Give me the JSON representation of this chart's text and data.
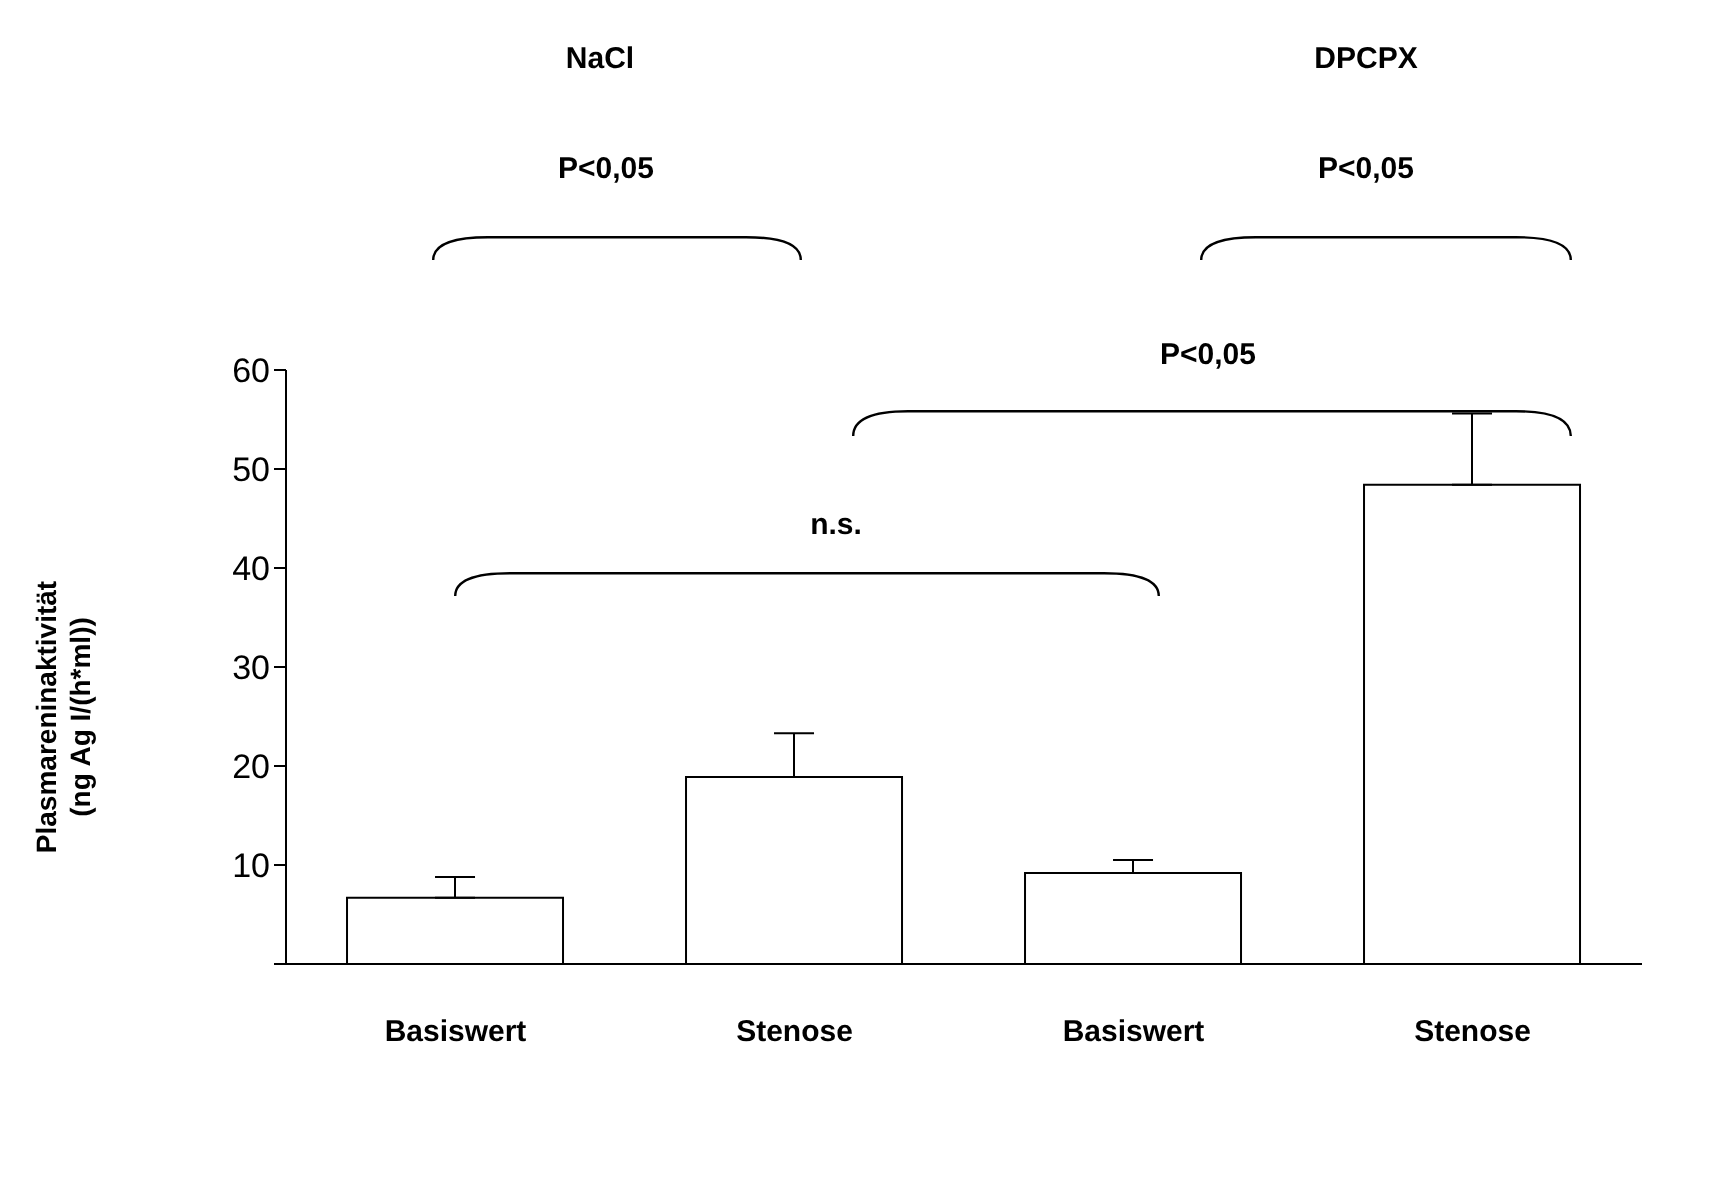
{
  "chart_data": {
    "type": "bar",
    "categories": [
      "Basiswert",
      "Stenose",
      "Basiswert",
      "Stenose"
    ],
    "values": [
      6.7,
      18.9,
      9.2,
      48.4
    ],
    "errors": [
      [
        6.7,
        8.8
      ],
      [
        18.9,
        23.3
      ],
      [
        9.2,
        10.5
      ],
      [
        48.4,
        55.6
      ]
    ],
    "colors": [
      "#ffffff",
      "#ffffff",
      "#ffffff",
      "#ffffff"
    ],
    "ylabel": "Plasmareninaktivität\n(ng Ag I/(h*ml))",
    "ylim": [
      0,
      60
    ],
    "yticks": [
      {
        "value": 0,
        "label": null
      },
      10,
      20,
      30,
      40,
      50,
      60
    ],
    "annotations": [
      "NaCl",
      "DPCPX",
      "P<0,05",
      "P<0,05",
      "P<0,05",
      "n.s."
    ],
    "grid": false,
    "legend": false
  }
}
